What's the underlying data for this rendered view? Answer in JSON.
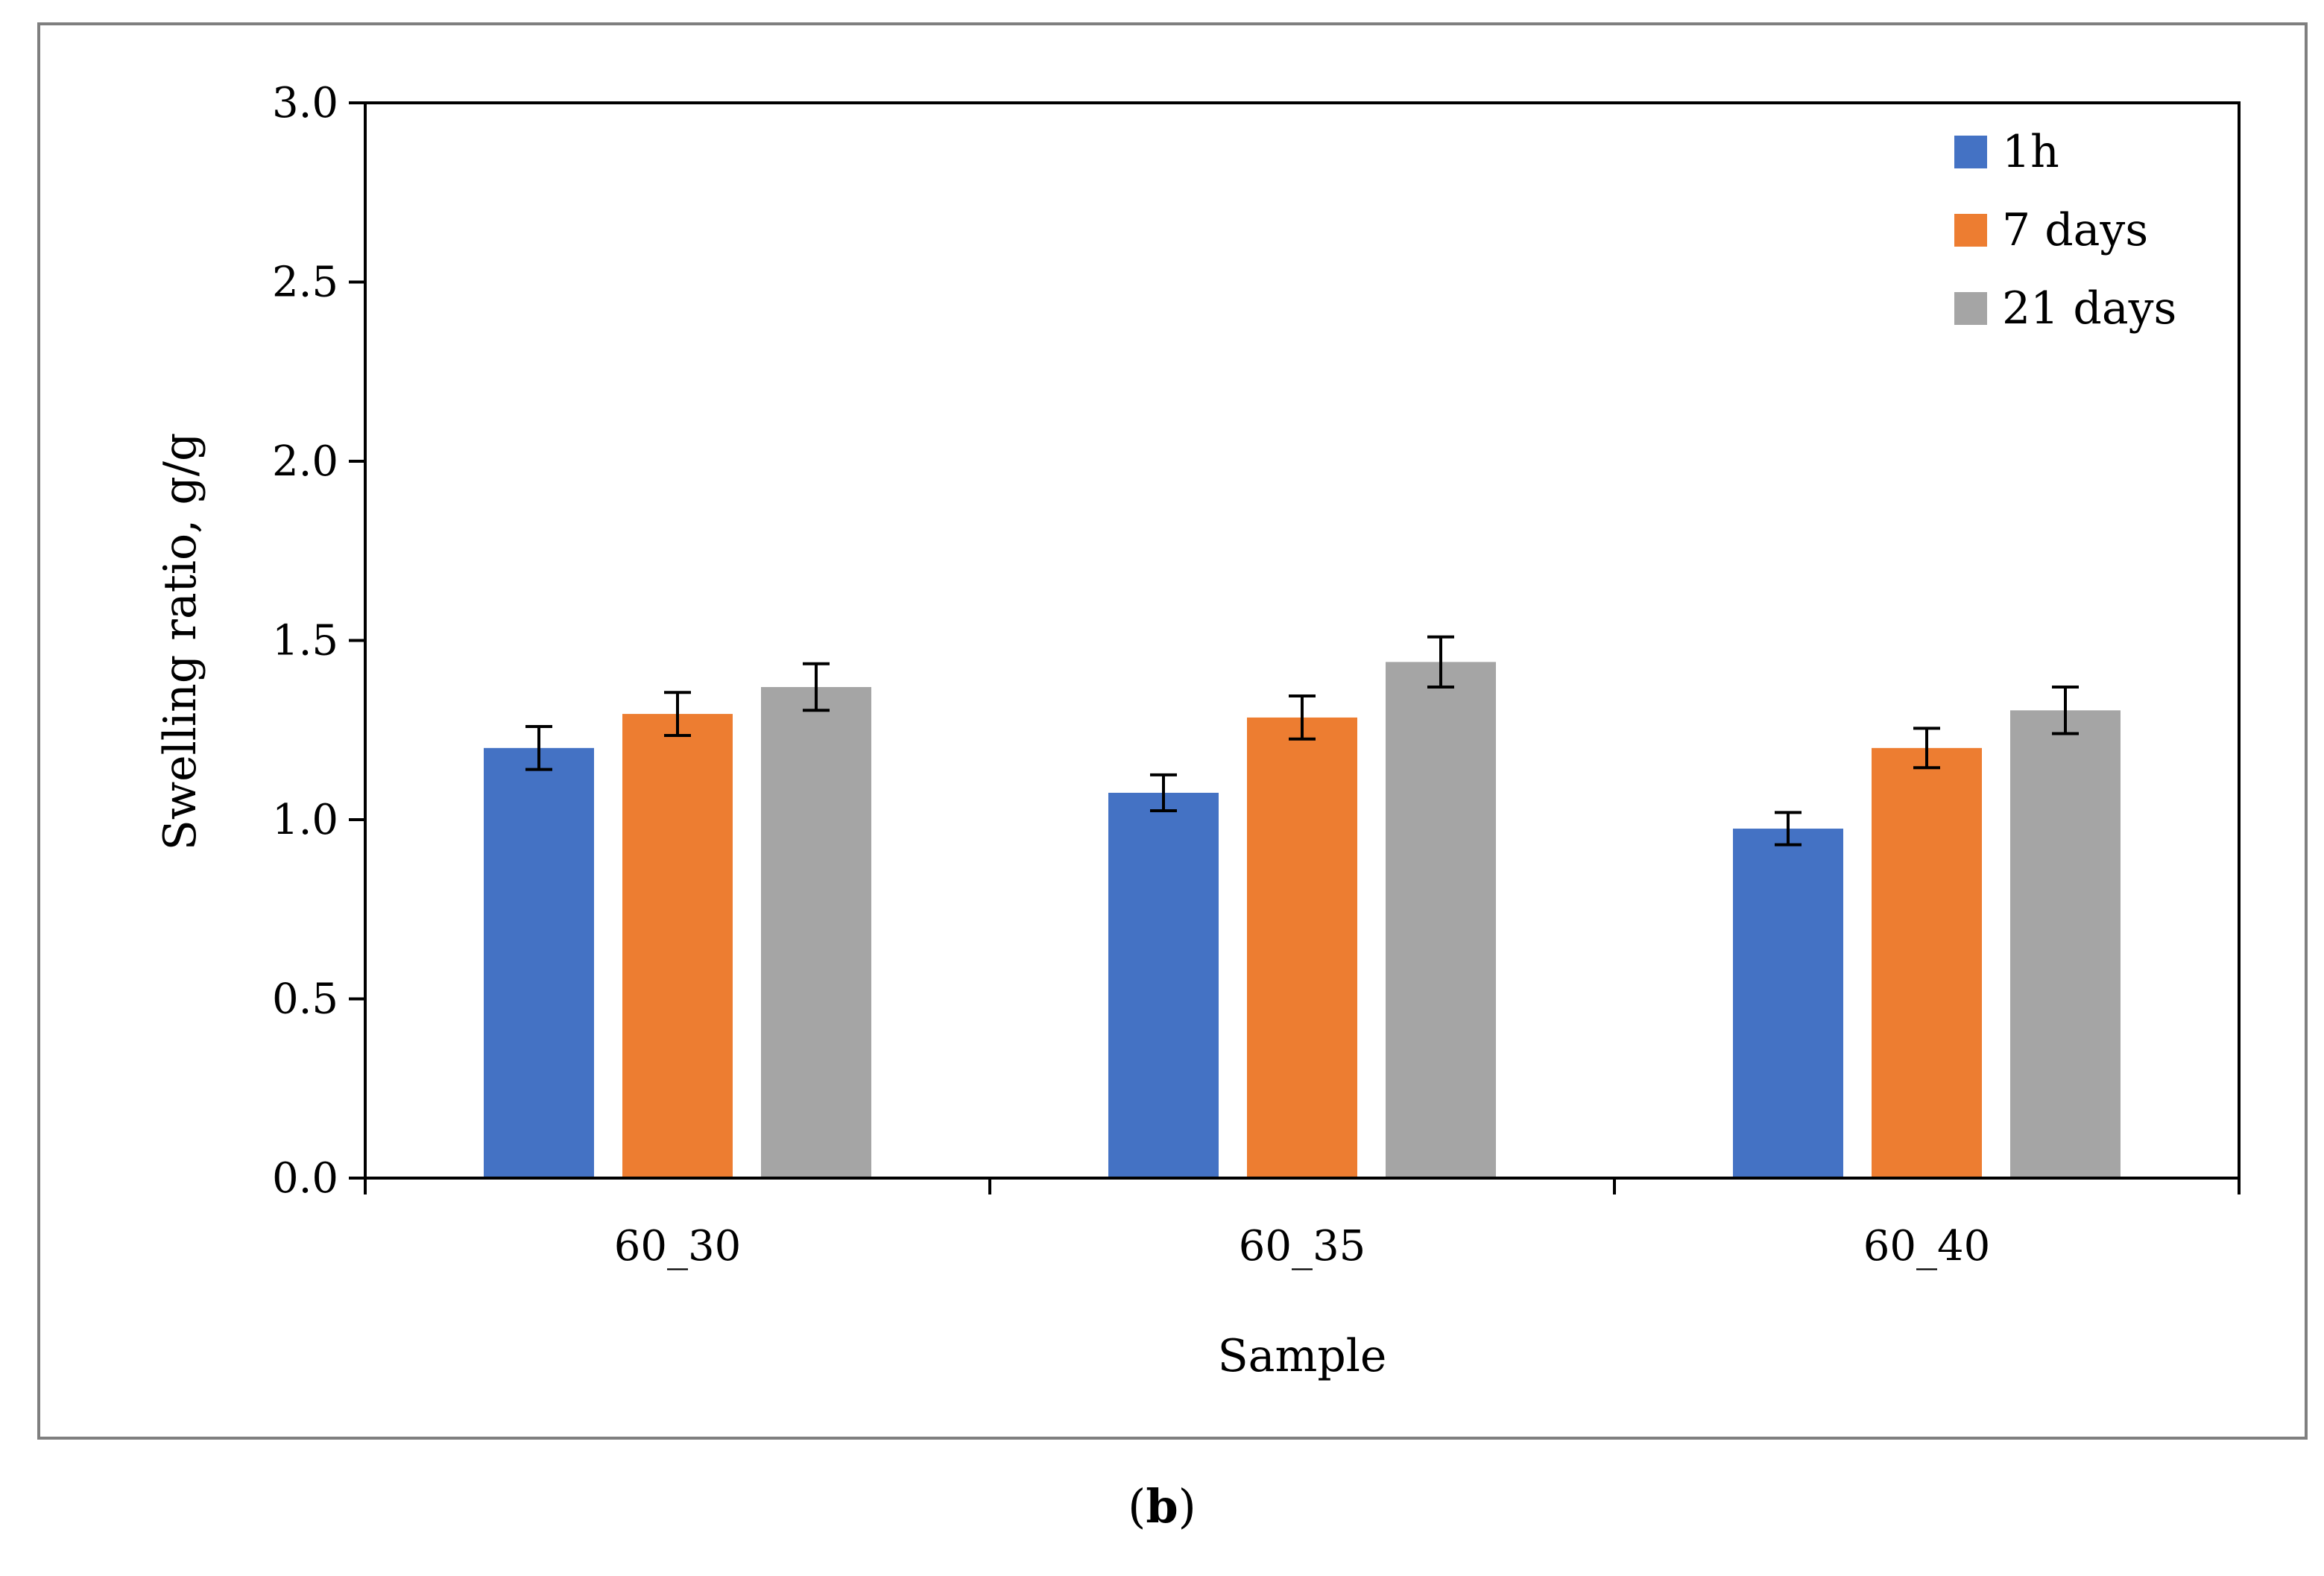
{
  "chart_data": {
    "type": "bar",
    "title": "",
    "xlabel": "Sample",
    "ylabel": "Swelling ratio, g/g",
    "categories": [
      "60_30",
      "60_35",
      "60_40"
    ],
    "ylim": [
      0,
      3.0
    ],
    "yticks": [
      0.0,
      0.5,
      1.0,
      1.5,
      2.0,
      2.5,
      3.0
    ],
    "ytick_labels": [
      "0.0",
      "0.5",
      "1.0",
      "1.5",
      "2.0",
      "2.5",
      "3.0"
    ],
    "grid": false,
    "legend_position": "top-right",
    "series": [
      {
        "name": "1h",
        "color": "#4472c4",
        "values": [
          1.2,
          1.075,
          0.975
        ],
        "errors": [
          0.06,
          0.05,
          0.045
        ]
      },
      {
        "name": "7 days",
        "color": "#ed7d31",
        "values": [
          1.295,
          1.285,
          1.2
        ],
        "errors": [
          0.06,
          0.06,
          0.055
        ]
      },
      {
        "name": "21 days",
        "color": "#a5a5a5",
        "values": [
          1.37,
          1.44,
          1.305
        ],
        "errors": [
          0.065,
          0.07,
          0.065
        ]
      }
    ]
  },
  "panel_label": {
    "open": "(",
    "letter": "b",
    "close": ")"
  }
}
